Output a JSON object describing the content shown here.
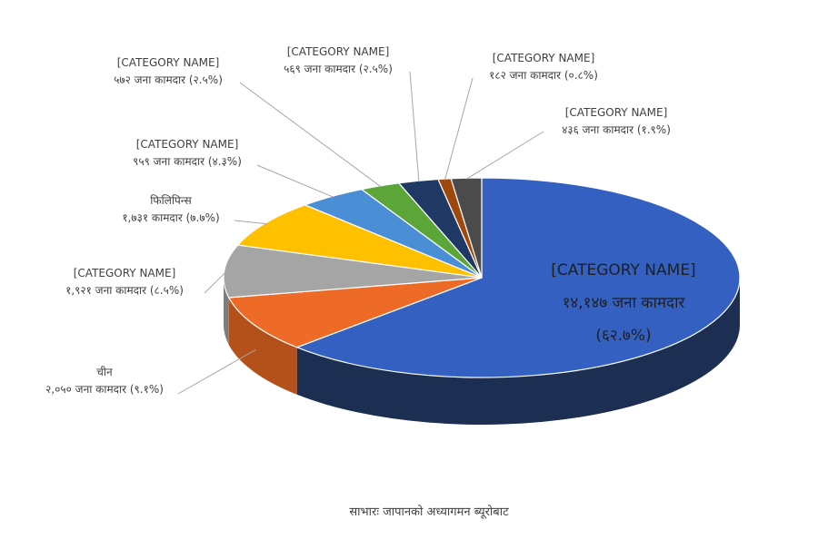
{
  "chart_data": {
    "type": "pie",
    "style": "3d",
    "source": "साभारः जापानको अध्यागमन ब्यूरोबाट",
    "slices": [
      {
        "name": "[CATEGORY NAME]",
        "detail": "१४,१४७ जना कामदार",
        "pct_label": "(६२.७%)",
        "value": 62.7,
        "color": "#3461c1",
        "side": "#1c2e52"
      },
      {
        "name": "चीन",
        "detail": "२,०५० जना कामदार (९.१%)",
        "value": 9.1,
        "color": "#ed6b26",
        "side": "#b4501a"
      },
      {
        "name": "[CATEGORY NAME]",
        "detail": "१,९२१ जना कामदार (८.५%)",
        "value": 8.5,
        "color": "#a5a5a5",
        "side": "#7d7d7d"
      },
      {
        "name": "फिलिपिन्स",
        "detail": "१,७३१ कामदार (७.७%)",
        "value": 7.7,
        "color": "#ffc000",
        "side": "#c49300"
      },
      {
        "name": "[CATEGORY NAME]",
        "detail": "९५९ जना कामदार (४.३%)",
        "value": 4.3,
        "color": "#4a8fd6",
        "side": "#316aa3"
      },
      {
        "name": "[CATEGORY NAME]",
        "detail": "५७२ जना कामदार (२.५%)",
        "value": 2.5,
        "color": "#5ca539",
        "side": "#427a28"
      },
      {
        "name": "[CATEGORY NAME]",
        "detail": "५६९ जना कामदार (२.५%)",
        "value": 2.5,
        "color": "#1f3864",
        "side": "#142646"
      },
      {
        "name": "[CATEGORY NAME]",
        "detail": "१८२ जना कामदार (०.८%)",
        "value": 0.8,
        "color": "#9e480e",
        "side": "#6f320a"
      },
      {
        "name": "[CATEGORY NAME]",
        "detail": "४३६ जना कामदार (१.९%)",
        "value": 1.9,
        "color": "#4b4b4b",
        "side": "#333333"
      }
    ]
  }
}
